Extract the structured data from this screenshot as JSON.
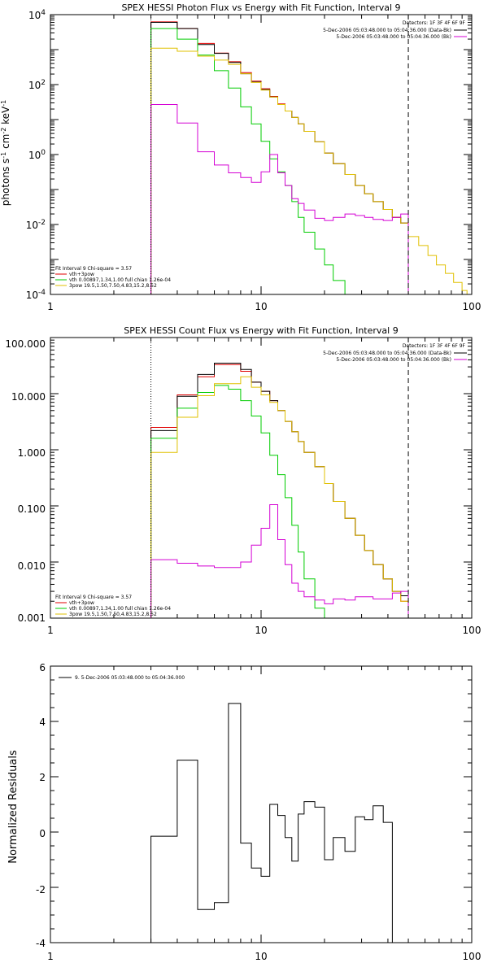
{
  "chart_data": [
    {
      "type": "line",
      "title": "SPEX HESSI Photon Flux vs Energy with Fit Function, Interval 9",
      "xlabel": "",
      "ylabel": "photons s⁻¹ cm⁻² keV⁻¹",
      "xscale": "log",
      "yscale": "log",
      "xlim": [
        1,
        100
      ],
      "ylim": [
        0.0001,
        10000
      ],
      "xticks": [
        1,
        10,
        100
      ],
      "xtick_labels": [
        "1",
        "10",
        "100"
      ],
      "yticks": [
        0.0001,
        0.01,
        1,
        100,
        10000
      ],
      "ytick_labels": [
        "10⁻⁴",
        "10⁻²",
        "10⁰",
        "10²",
        "10⁴"
      ],
      "vlines": [
        {
          "x": 3,
          "style": "dotted",
          "color": "#000000"
        },
        {
          "x": 50,
          "style": "dashed",
          "color": "#000000"
        }
      ],
      "legend_top_right": [
        {
          "text": "Detectors: 1F 3F 4F 6F 9F",
          "color": "#000000"
        },
        {
          "text": "5-Dec-2006 05:03:48.000 to 05:04:36.000 (Data-Bk)",
          "color": "#000000"
        },
        {
          "text": "5-Dec-2006 05:03:48.000 to 05:04:36.000 (Bk)",
          "color": "#d400d4"
        }
      ],
      "legend_bottom_left": [
        {
          "text": "Fit Interval 9   Chi-square = 3.57",
          "color": "#000000"
        },
        {
          "text": "vth+3pow",
          "color": "#e00000"
        },
        {
          "text": "vth 0.00897,1.34,1.00  full chian 1.26e-04",
          "color": "#00cc00"
        },
        {
          "text": "3pow 19.5,1.50,7.50,4.83,15.2,8.52",
          "color": "#e0c000"
        }
      ],
      "edges": [
        3,
        4,
        5,
        6,
        7,
        8,
        9,
        10,
        11,
        12,
        13,
        14,
        15,
        16,
        18,
        20,
        22,
        25,
        28,
        31,
        34,
        38,
        42,
        46,
        50
      ],
      "series": [
        {
          "color": "#e00000",
          "values": [
            6200,
            4000,
            1500,
            800,
            450,
            220,
            125,
            76,
            46,
            28,
            17.5,
            11.5,
            7.5,
            4.6,
            2.3,
            1.1,
            0.55,
            0.27,
            0.13,
            0.075,
            0.045,
            0.027,
            0.016,
            0.011
          ]
        },
        {
          "color": "#000000",
          "values": [
            6000,
            4000,
            1400,
            780,
            430,
            205,
            118,
            72,
            44,
            27,
            17.5,
            11.5,
            7.5,
            4.6,
            2.3,
            1.1,
            0.55,
            0.27,
            0.13,
            0.075,
            0.045,
            0.027,
            0.016,
            0.011
          ]
        },
        {
          "color": "#00cc00",
          "values": [
            4000,
            2000,
            700,
            250,
            80,
            23,
            7.5,
            2.4,
            0.75,
            0.32,
            0.13,
            0.045,
            0.016,
            0.006,
            0.002,
            0.0007,
            0.00025,
            0.0001
          ]
        },
        {
          "color": "#e0c000",
          "values": [
            1100,
            900,
            650,
            500,
            380,
            205,
            115,
            70,
            44,
            27,
            17.5,
            11.5,
            7.5,
            4.6,
            2.3,
            1.1,
            0.55,
            0.27,
            0.13,
            0.075,
            0.045,
            0.027,
            0.016,
            0.011,
            0.0045,
            0.0025,
            0.0013,
            0.0007,
            0.0004,
            0.00022,
            0.00013
          ],
          "edges": [
            3,
            4,
            5,
            6,
            7,
            8,
            9,
            10,
            11,
            12,
            13,
            14,
            15,
            16,
            18,
            20,
            22,
            25,
            28,
            31,
            34,
            38,
            42,
            46,
            50,
            56,
            62,
            68,
            75,
            82,
            90,
            95
          ]
        },
        {
          "color": "#d400d4",
          "values": [
            27,
            8,
            1.2,
            0.5,
            0.3,
            0.22,
            0.16,
            0.32,
            1.0,
            0.3,
            0.13,
            0.055,
            0.04,
            0.026,
            0.015,
            0.013,
            0.016,
            0.02,
            0.018,
            0.016,
            0.014,
            0.013,
            0.016,
            0.02
          ]
        }
      ]
    },
    {
      "type": "line",
      "title": "SPEX HESSI Count Flux vs Energy with Fit Function, Interval 9",
      "xlabel": "",
      "ylabel": "",
      "xscale": "log",
      "yscale": "log",
      "xlim": [
        1,
        100
      ],
      "ylim": [
        0.001,
        100
      ],
      "xticks": [
        1,
        10,
        100
      ],
      "xtick_labels": [
        "1",
        "10",
        "100"
      ],
      "yticks": [
        0.001,
        0.01,
        0.1,
        1,
        10,
        100
      ],
      "ytick_labels": [
        "0.001",
        "0.010",
        "0.100",
        "1.000",
        "10.000",
        "100.000"
      ],
      "vlines": [
        {
          "x": 3,
          "style": "dotted",
          "color": "#000000"
        },
        {
          "x": 50,
          "style": "dashed",
          "color": "#000000"
        }
      ],
      "legend_top_right": [
        {
          "text": "Detectors: 1F 3F 4F 6F 9F",
          "color": "#000000"
        },
        {
          "text": "5-Dec-2006 05:03:48.000 to 05:04:36.000 (Data-Bk)",
          "color": "#000000"
        },
        {
          "text": "5-Dec-2006 05:03:48.000 to 05:04:36.000 (Bk)",
          "color": "#d400d4"
        }
      ],
      "legend_bottom_left": [
        {
          "text": "Fit Interval 9   Chi-square = 3.57",
          "color": "#000000"
        },
        {
          "text": "vth+3pow",
          "color": "#e00000"
        },
        {
          "text": "vth 0.00897,1.34,1.00  full chian 1.26e-04",
          "color": "#00cc00"
        },
        {
          "text": "3pow 19.5,1.50,7.50,4.83,15.2,8.52",
          "color": "#e0c000"
        }
      ],
      "edges": [
        3,
        4,
        5,
        6,
        7,
        8,
        9,
        10,
        11,
        12,
        13,
        14,
        15,
        16,
        18,
        20,
        22,
        25,
        28,
        31,
        34,
        38,
        42,
        46,
        50
      ],
      "series": [
        {
          "color": "#e00000",
          "values": [
            2.5,
            9.5,
            20,
            33,
            33,
            25,
            16,
            11,
            7.5,
            5,
            3.2,
            2.1,
            1.4,
            0.9,
            0.5,
            0.25,
            0.12,
            0.06,
            0.03,
            0.016,
            0.009,
            0.005,
            0.003,
            0.002
          ]
        },
        {
          "color": "#000000",
          "values": [
            2.2,
            9,
            22,
            35,
            35,
            27,
            16,
            11,
            7.5,
            5,
            3.2,
            2.1,
            1.4,
            0.9,
            0.5,
            0.25,
            0.12,
            0.06,
            0.03,
            0.016,
            0.009,
            0.005,
            0.003,
            0.0025
          ]
        },
        {
          "color": "#00cc00",
          "values": [
            1.6,
            5.5,
            10.5,
            14,
            12,
            7.5,
            4,
            2,
            0.8,
            0.36,
            0.14,
            0.045,
            0.015,
            0.005,
            0.0015,
            0.001
          ]
        },
        {
          "color": "#e0c000",
          "values": [
            0.9,
            3.8,
            9.2,
            15,
            15,
            20,
            13,
            9.5,
            7,
            5,
            3.2,
            2.1,
            1.4,
            0.9,
            0.5,
            0.25,
            0.12,
            0.06,
            0.03,
            0.016,
            0.009,
            0.005,
            0.003,
            0.002
          ]
        },
        {
          "color": "#d400d4",
          "values": [
            0.011,
            0.0095,
            0.0085,
            0.008,
            0.008,
            0.01,
            0.02,
            0.04,
            0.105,
            0.025,
            0.009,
            0.0042,
            0.003,
            0.0024,
            0.0021,
            0.0018,
            0.0022,
            0.0021,
            0.0024,
            0.0024,
            0.0022,
            0.0022,
            0.0028,
            0.003
          ]
        }
      ]
    },
    {
      "type": "line",
      "title": "",
      "xlabel": "",
      "ylabel": "Normalized Residuals",
      "xscale": "log",
      "yscale": "linear",
      "xlim": [
        1,
        100
      ],
      "ylim": [
        -4,
        6
      ],
      "xticks": [
        1,
        10,
        100
      ],
      "xtick_labels": [
        "1",
        "10",
        "100"
      ],
      "yticks": [
        -4,
        -2,
        0,
        2,
        4,
        6
      ],
      "ytick_labels": [
        "-4",
        "-2",
        "0",
        "2",
        "4",
        "6"
      ],
      "legend_top_left": [
        {
          "text": "9.  5-Dec-2006 05:03:48.000 to 05:04:36.000",
          "color": "#000000"
        }
      ],
      "edges": [
        3,
        4,
        5,
        6,
        7,
        8,
        9,
        10,
        11,
        12,
        13,
        14,
        15,
        16,
        18,
        20,
        22,
        25,
        28,
        31,
        34,
        38,
        42,
        46,
        50
      ],
      "series": [
        {
          "color": "#000000",
          "values": [
            -0.15,
            2.6,
            -2.8,
            -2.55,
            4.65,
            -0.4,
            -1.3,
            -1.6,
            1.0,
            0.6,
            -0.2,
            -1.05,
            0.65,
            1.1,
            0.9,
            -1.0,
            -0.2,
            -0.7,
            0.55,
            0.45,
            0.95,
            0.35
          ]
        }
      ]
    }
  ]
}
